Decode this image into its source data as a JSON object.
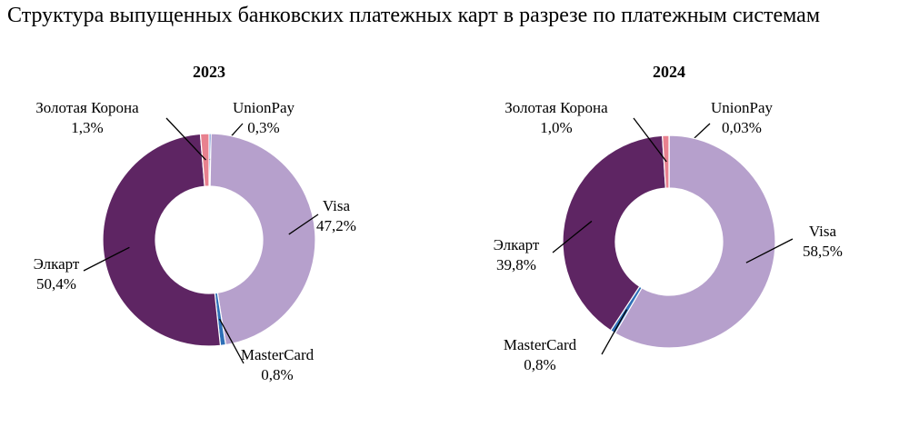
{
  "title": "Структура выпущенных банковских платежных карт в разрезе по платежным системам",
  "chart_data": [
    {
      "type": "pie",
      "title": "2023",
      "slices": [
        {
          "label": "UnionPay",
          "value": 0.3,
          "value_label": "0,3%",
          "color": "#4472c4"
        },
        {
          "label": "Visa",
          "value": 47.2,
          "value_label": "47,2%",
          "color": "#b6a0cc"
        },
        {
          "label": "MasterCard",
          "value": 0.8,
          "value_label": "0,8%",
          "color": "#2e6fb7"
        },
        {
          "label": "Элкарт",
          "value": 50.4,
          "value_label": "50,4%",
          "color": "#5e2563"
        },
        {
          "label": "Золотая Корона",
          "value": 1.3,
          "value_label": "1,3%",
          "color": "#e8818f"
        }
      ]
    },
    {
      "type": "pie",
      "title": "2024",
      "slices": [
        {
          "label": "UnionPay",
          "value": 0.03,
          "value_label": "0,03%",
          "color": "#4472c4"
        },
        {
          "label": "Visa",
          "value": 58.5,
          "value_label": "58,5%",
          "color": "#b6a0cc"
        },
        {
          "label": "MasterCard",
          "value": 0.8,
          "value_label": "0,8%",
          "color": "#2e6fb7"
        },
        {
          "label": "Элкарт",
          "value": 39.8,
          "value_label": "39,8%",
          "color": "#5e2563"
        },
        {
          "label": "Золотая Корона",
          "value": 1.0,
          "value_label": "1,0%",
          "color": "#e8818f"
        }
      ]
    }
  ]
}
